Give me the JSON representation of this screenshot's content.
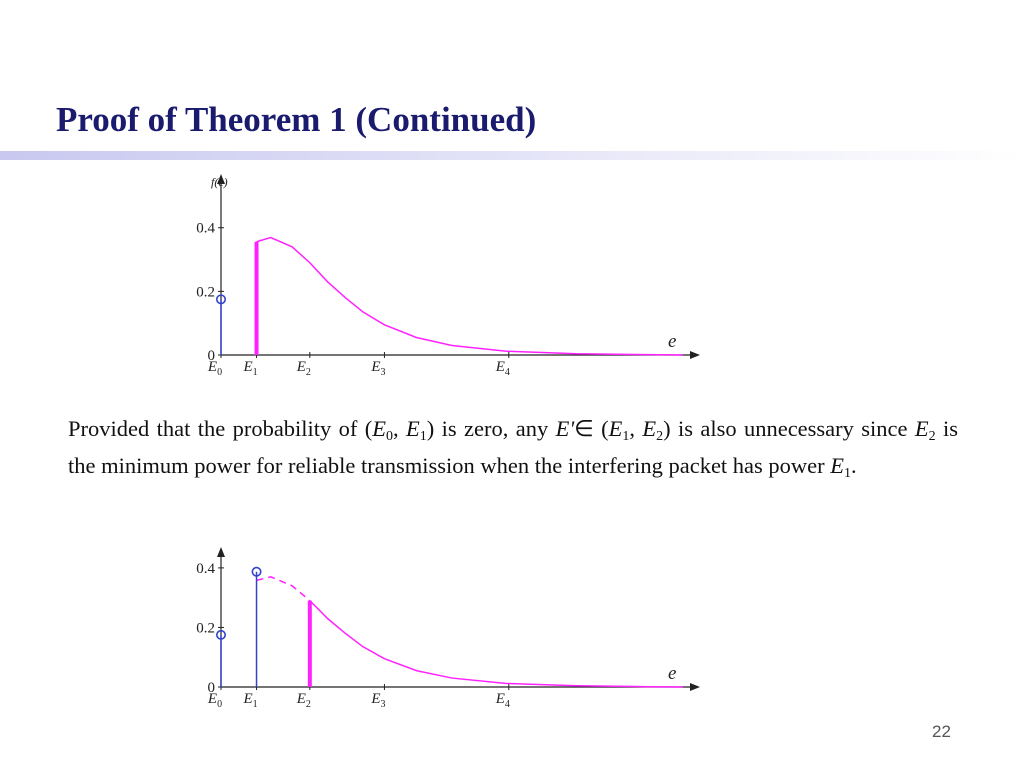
{
  "title": "Proof of Theorem 1 (Continued)",
  "paragraph": [
    "Provided that the probability of (",
    "E",
    "0",
    ", ",
    "E",
    "1",
    ") is zero, any ",
    "E'",
    "∈ (",
    "E",
    "1",
    ", ",
    "E",
    "2",
    ") is also unnecessary since ",
    "E",
    "2",
    " is the minimum power for reliable transmission when the interfering packet has power ",
    "E",
    "1",
    "."
  ],
  "page_number": "22",
  "chart_data": [
    {
      "type": "line",
      "ylabel": "f(e)",
      "xlabel": "e",
      "xlim": [
        0,
        13.2
      ],
      "ylim": [
        0,
        0.55
      ],
      "xticks": [
        {
          "value": 0,
          "label": "E0"
        },
        {
          "value": 1,
          "label": "E1"
        },
        {
          "value": 2.5,
          "label": "E2"
        },
        {
          "value": 4.6,
          "label": "E3"
        },
        {
          "value": 8.1,
          "label": "E4"
        }
      ],
      "yticks": [
        0,
        0.2,
        0.4
      ],
      "series": [
        {
          "color": "#ff22ff",
          "style": "solid",
          "x": [
            1,
            1.4,
            2,
            2.5,
            3,
            3.5,
            4,
            4.6,
            5.5,
            6.5,
            8,
            10,
            12,
            13
          ],
          "values": [
            0.356,
            0.369,
            0.34,
            0.29,
            0.23,
            0.18,
            0.135,
            0.095,
            0.055,
            0.03,
            0.012,
            0.004,
            0.001,
            0
          ]
        }
      ],
      "stems": [
        {
          "x": 0,
          "value": 0.175,
          "color": "#3344cc",
          "marker": "circle"
        },
        {
          "x": 1,
          "value": 0.356,
          "color": "#ff22ff",
          "marker": "none"
        }
      ]
    },
    {
      "type": "line",
      "xlabel": "e",
      "xlim": [
        0,
        13.2
      ],
      "ylim": [
        0,
        0.45
      ],
      "xticks": [
        {
          "value": 0,
          "label": "E0"
        },
        {
          "value": 1,
          "label": "E1"
        },
        {
          "value": 2.5,
          "label": "E2"
        },
        {
          "value": 4.6,
          "label": "E3"
        },
        {
          "value": 8.1,
          "label": "E4"
        }
      ],
      "yticks": [
        0,
        0.2,
        0.4
      ],
      "series": [
        {
          "color": "#ff22ff",
          "style": "dashed",
          "x": [
            1,
            1.4,
            2,
            2.5
          ],
          "values": [
            0.358,
            0.37,
            0.34,
            0.29
          ]
        },
        {
          "color": "#ff22ff",
          "style": "solid",
          "x": [
            2.5,
            3,
            3.5,
            4,
            4.6,
            5.5,
            6.5,
            8,
            10,
            12,
            13
          ],
          "values": [
            0.29,
            0.23,
            0.18,
            0.135,
            0.095,
            0.055,
            0.03,
            0.012,
            0.004,
            0.001,
            0
          ]
        }
      ],
      "stems": [
        {
          "x": 0,
          "value": 0.175,
          "color": "#3344cc",
          "marker": "circle"
        },
        {
          "x": 1,
          "value": 0.387,
          "color": "#3344cc",
          "marker": "circle"
        },
        {
          "x": 2.5,
          "value": 0.29,
          "color": "#ff22ff",
          "marker": "none"
        }
      ]
    }
  ]
}
